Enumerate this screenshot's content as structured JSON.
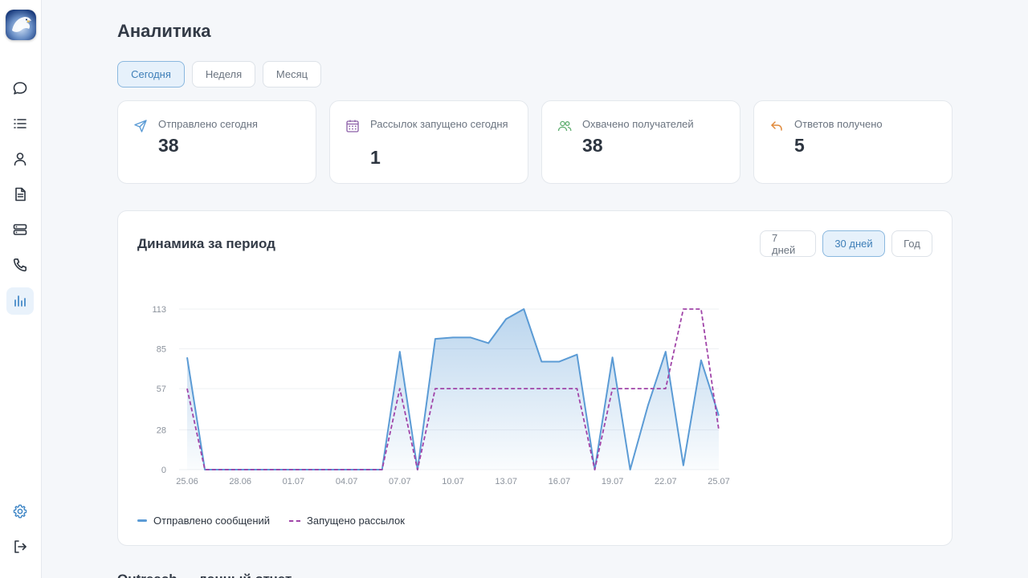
{
  "sidebar": {
    "items": [
      {
        "icon": "chat-icon"
      },
      {
        "icon": "list-icon"
      },
      {
        "icon": "user-icon"
      },
      {
        "icon": "document-icon"
      },
      {
        "icon": "server-icon"
      },
      {
        "icon": "phone-icon"
      },
      {
        "icon": "analytics-icon",
        "active": true
      }
    ],
    "bottom": [
      {
        "icon": "settings-icon"
      },
      {
        "icon": "logout-icon"
      }
    ]
  },
  "page": {
    "title": "Аналитика"
  },
  "range_tabs": {
    "today": "Сегодня",
    "week": "Неделя",
    "month": "Месяц",
    "active": "today"
  },
  "stats": [
    {
      "label": "Отправлено сегодня",
      "value": "38",
      "icon": "send-icon",
      "color": "#5b9bd5"
    },
    {
      "label": "Рассылок запущено сегодня",
      "value": "1",
      "icon": "calendar-icon",
      "color": "#8c5fa8"
    },
    {
      "label": "Охвачено получателей",
      "value": "38",
      "icon": "users-icon",
      "color": "#5fae70"
    },
    {
      "label": "Ответов получено",
      "value": "5",
      "icon": "reply-icon",
      "color": "#e08a3c"
    }
  ],
  "chart_panel": {
    "title": "Динамика за период",
    "period_tabs": {
      "d7": "7 дней",
      "d30": "30 дней",
      "year": "Год",
      "active": "d30"
    },
    "legend": {
      "sent": "Отправлено сообщений",
      "launched": "Запущено рассылок"
    }
  },
  "next_section": {
    "title": "Outreach — данный отчет"
  },
  "colors": {
    "accent": "#5b9bd5",
    "launched": "#a044a8",
    "grid": "#eef0f3"
  },
  "chart_data": {
    "type": "area",
    "x": [
      "25.06",
      "26.06",
      "27.06",
      "28.06",
      "29.06",
      "30.06",
      "01.07",
      "02.07",
      "03.07",
      "04.07",
      "05.07",
      "06.07",
      "07.07",
      "08.07",
      "09.07",
      "10.07",
      "11.07",
      "12.07",
      "13.07",
      "14.07",
      "15.07",
      "16.07",
      "17.07",
      "18.07",
      "19.07",
      "20.07",
      "21.07",
      "22.07",
      "23.07",
      "24.07",
      "25.07"
    ],
    "x_ticks": [
      "25.06",
      "28.06",
      "01.07",
      "04.07",
      "07.07",
      "10.07",
      "13.07",
      "16.07",
      "19.07",
      "22.07",
      "25.07"
    ],
    "series": [
      {
        "name": "Отправлено сообщений",
        "style": "solid-area",
        "values": [
          79,
          0,
          0,
          0,
          0,
          0,
          0,
          0,
          0,
          0,
          0,
          0,
          83,
          0,
          92,
          93,
          93,
          89,
          106,
          113,
          76,
          76,
          81,
          0,
          79,
          0,
          45,
          83,
          3,
          77,
          38
        ]
      },
      {
        "name": "Запущено рассылок",
        "style": "dashed",
        "values": [
          57,
          0,
          0,
          0,
          0,
          0,
          0,
          0,
          0,
          0,
          0,
          0,
          57,
          0,
          57,
          57,
          57,
          57,
          57,
          57,
          57,
          57,
          57,
          0,
          57,
          57,
          57,
          57,
          113,
          113,
          28
        ]
      }
    ],
    "y_ticks": [
      0,
      28,
      57,
      85,
      113
    ],
    "ylim": [
      0,
      113
    ],
    "grid": true,
    "legend_position": "bottom-left"
  }
}
